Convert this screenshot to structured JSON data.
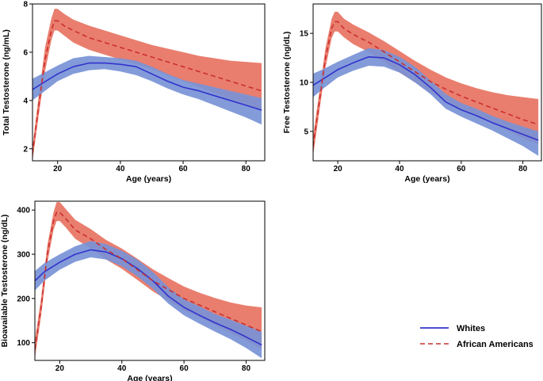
{
  "chart_data": [
    {
      "id": "total",
      "type": "line",
      "xlabel": "Age (years)",
      "ylabel": "Total Testosterone (ng/mL)",
      "xlim": [
        12,
        86
      ],
      "ylim": [
        1.5,
        8.0
      ],
      "xticks": [
        20,
        40,
        60,
        80
      ],
      "yticks": [
        2,
        4,
        6,
        8
      ],
      "series": [
        {
          "name": "Whites",
          "color": "#3333cc",
          "band_color": "#7892d6",
          "style": "solid",
          "x": [
            12,
            15,
            20,
            25,
            30,
            35,
            40,
            45,
            50,
            55,
            60,
            65,
            70,
            75,
            80,
            85
          ],
          "y": [
            4.45,
            4.7,
            5.1,
            5.4,
            5.55,
            5.55,
            5.5,
            5.4,
            5.1,
            4.8,
            4.55,
            4.4,
            4.2,
            4.0,
            3.8,
            3.6
          ],
          "lower": [
            4.0,
            4.3,
            4.8,
            5.1,
            5.25,
            5.3,
            5.2,
            5.05,
            4.8,
            4.5,
            4.25,
            4.05,
            3.8,
            3.55,
            3.3,
            3.0
          ],
          "upper": [
            4.9,
            5.1,
            5.45,
            5.75,
            5.85,
            5.8,
            5.75,
            5.65,
            5.4,
            5.1,
            4.85,
            4.7,
            4.55,
            4.4,
            4.25,
            4.1
          ]
        },
        {
          "name": "African Americans",
          "color": "#cc2f2f",
          "band_color": "#e87766",
          "style": "dashed",
          "x": [
            12,
            14,
            16,
            18,
            19,
            20,
            22,
            25,
            30,
            35,
            40,
            45,
            50,
            55,
            60,
            65,
            70,
            75,
            80,
            85
          ],
          "y": [
            1.8,
            3.8,
            5.7,
            6.9,
            7.3,
            7.3,
            7.1,
            6.9,
            6.6,
            6.4,
            6.2,
            6.0,
            5.8,
            5.6,
            5.4,
            5.2,
            5.0,
            4.8,
            4.6,
            4.4
          ],
          "lower": [
            1.5,
            3.4,
            5.2,
            6.5,
            6.9,
            6.9,
            6.7,
            6.4,
            6.1,
            5.9,
            5.7,
            5.5,
            5.3,
            5.05,
            4.8,
            4.55,
            4.3,
            4.05,
            3.8,
            3.55
          ],
          "upper": [
            2.1,
            4.2,
            6.2,
            7.4,
            7.8,
            7.8,
            7.6,
            7.35,
            7.1,
            6.9,
            6.7,
            6.5,
            6.3,
            6.15,
            6.0,
            5.85,
            5.75,
            5.65,
            5.6,
            5.55
          ]
        }
      ]
    },
    {
      "id": "free",
      "type": "line",
      "xlabel": "Age (years)",
      "ylabel": "Free Testosterone (ng/dL)",
      "xlim": [
        12,
        86
      ],
      "ylim": [
        2,
        18
      ],
      "xticks": [
        20,
        40,
        60,
        80
      ],
      "yticks": [
        5,
        10,
        15
      ],
      "series": [
        {
          "name": "Whites",
          "color": "#3333cc",
          "band_color": "#7892d6",
          "style": "solid",
          "x": [
            12,
            15,
            20,
            25,
            30,
            35,
            40,
            45,
            50,
            55,
            60,
            65,
            70,
            75,
            80,
            85
          ],
          "y": [
            9.7,
            10.3,
            11.3,
            12.0,
            12.6,
            12.5,
            11.8,
            10.8,
            9.5,
            8.0,
            7.2,
            6.6,
            5.9,
            5.3,
            4.7,
            4.1
          ],
          "lower": [
            8.5,
            9.3,
            10.5,
            11.2,
            11.7,
            11.6,
            11.0,
            10.0,
            8.8,
            7.3,
            6.5,
            5.8,
            5.1,
            4.3,
            3.5,
            2.5
          ],
          "upper": [
            10.9,
            11.3,
            12.1,
            12.8,
            13.5,
            13.3,
            12.6,
            11.6,
            10.2,
            8.8,
            7.9,
            7.3,
            6.6,
            6.0,
            5.5,
            5.0
          ]
        },
        {
          "name": "African Americans",
          "color": "#cc2f2f",
          "band_color": "#e87766",
          "style": "dashed",
          "x": [
            12,
            14,
            16,
            18,
            19,
            20,
            22,
            25,
            30,
            35,
            40,
            45,
            50,
            55,
            60,
            65,
            70,
            75,
            80,
            85
          ],
          "y": [
            3.5,
            8.0,
            12.5,
            15.5,
            16.2,
            16.2,
            15.5,
            14.9,
            14.1,
            13.1,
            12.1,
            11.1,
            10.1,
            9.3,
            8.6,
            8.0,
            7.4,
            6.8,
            6.2,
            5.7
          ],
          "lower": [
            2.5,
            7.0,
            11.5,
            14.5,
            15.2,
            15.2,
            14.6,
            13.9,
            13.1,
            12.1,
            11.0,
            10.0,
            9.0,
            8.1,
            7.3,
            6.6,
            5.8,
            5.1,
            4.3,
            3.7
          ],
          "upper": [
            4.5,
            9.0,
            13.5,
            16.5,
            17.2,
            17.2,
            16.5,
            15.9,
            15.1,
            14.2,
            13.2,
            12.2,
            11.3,
            10.5,
            9.9,
            9.4,
            9.0,
            8.7,
            8.5,
            8.3
          ]
        }
      ]
    },
    {
      "id": "bioavailable",
      "type": "line",
      "xlabel": "Age (years)",
      "ylabel": "Bioavailable Testosterone (ng/dL)",
      "xlim": [
        12,
        86
      ],
      "ylim": [
        60,
        420
      ],
      "xticks": [
        20,
        40,
        60,
        80
      ],
      "yticks": [
        100,
        200,
        300,
        400
      ],
      "series": [
        {
          "name": "Whites",
          "color": "#3333cc",
          "band_color": "#7892d6",
          "style": "solid",
          "x": [
            12,
            15,
            20,
            25,
            30,
            35,
            40,
            45,
            50,
            55,
            60,
            65,
            70,
            75,
            80,
            85
          ],
          "y": [
            240,
            260,
            282,
            300,
            310,
            305,
            290,
            268,
            240,
            205,
            180,
            162,
            145,
            130,
            113,
            95
          ],
          "lower": [
            218,
            240,
            265,
            283,
            293,
            288,
            273,
            250,
            222,
            188,
            162,
            143,
            125,
            108,
            88,
            65
          ],
          "upper": [
            262,
            280,
            300,
            318,
            330,
            323,
            308,
            288,
            260,
            225,
            198,
            182,
            165,
            152,
            138,
            125
          ]
        },
        {
          "name": "African Americans",
          "color": "#cc2f2f",
          "band_color": "#e87766",
          "style": "dashed",
          "x": [
            12,
            14,
            16,
            18,
            19,
            20,
            22,
            25,
            30,
            35,
            40,
            45,
            50,
            55,
            60,
            65,
            70,
            75,
            80,
            85
          ],
          "y": [
            85,
            180,
            300,
            375,
            395,
            395,
            380,
            355,
            335,
            310,
            290,
            265,
            240,
            220,
            200,
            185,
            170,
            155,
            140,
            125
          ],
          "lower": [
            65,
            160,
            280,
            355,
            375,
            375,
            360,
            335,
            313,
            288,
            267,
            242,
            216,
            195,
            173,
            157,
            140,
            122,
            105,
            85
          ],
          "upper": [
            105,
            200,
            320,
            395,
            418,
            418,
            402,
            378,
            357,
            332,
            313,
            290,
            266,
            246,
            227,
            213,
            201,
            191,
            184,
            180
          ]
        }
      ]
    }
  ],
  "legend": {
    "position": "bottom-right",
    "items": [
      {
        "label": "Whites",
        "color": "#3333cc",
        "style": "solid"
      },
      {
        "label": "African Americans",
        "color": "#cc2f2f",
        "style": "dashed"
      }
    ]
  }
}
